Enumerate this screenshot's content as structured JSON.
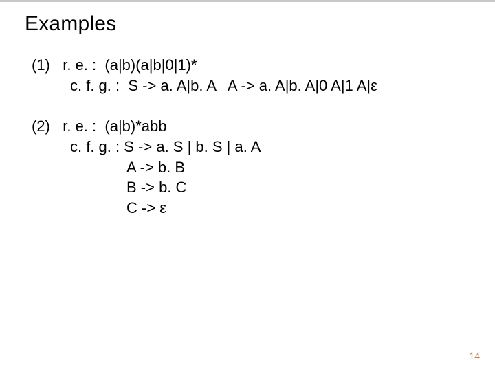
{
  "title": "Examples",
  "example1": {
    "num": "(1)",
    "re_label": "r. e. :",
    "re_expr": "(a|b)(a|b|0|1)*",
    "cfg_label": "c. f. g. :",
    "cfg_rule1": "S -> a. A|b. A   A -> a. A|b. A|0 A|1 A|ε"
  },
  "example2": {
    "num": "(2)",
    "re_label": "r. e. :",
    "re_expr": "(a|b)*abb",
    "cfg_label": "c. f. g. :",
    "cfg_rule1": "S -> a. S | b. S | a. A",
    "cfg_rule2": "A -> b. B",
    "cfg_rule3": "B -> b. C",
    "cfg_rule4": "C -> ε"
  },
  "page_number": "14",
  "colors": {
    "background": "#ffffff",
    "text": "#000000",
    "page_num": "#b97f52",
    "top_line": "#c8c8c8"
  },
  "fonts": {
    "title_size": 30,
    "body_size": 22,
    "pagenum_size": 14,
    "family": "Arial"
  }
}
